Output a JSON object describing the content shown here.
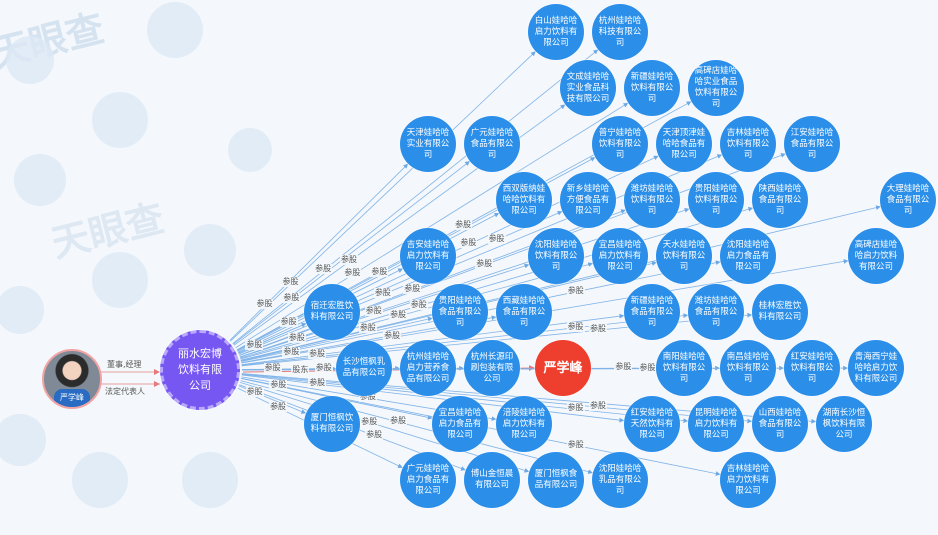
{
  "watermark": "天眼查",
  "person": {
    "name": "严学峰",
    "relations": [
      "董事,经理",
      "法定代表人"
    ]
  },
  "center": {
    "name": "丽水宏博饮料有限公司",
    "color": "#7657f2"
  },
  "highlight": {
    "name": "严学峰",
    "color": "#ee3f2e",
    "edge": "股东"
  },
  "node_color": "#2b8fea",
  "edge_label": "参股",
  "companies": [
    "白山娃哈哈启力饮料有限公司",
    "杭州娃哈哈科技有限公司",
    "新疆娃哈哈饮料有限公司",
    "文成娃哈哈实业食品科技有限公司",
    "普宁娃哈哈饮料有限公司",
    "天津娃哈哈实业有限公司",
    "广元娃哈哈食品有限公司",
    "天津顶津娃哈哈食品有限公司",
    "高碑店娃哈哈实业食品饮料有限公司",
    "吉林娃哈哈饮料有限公司",
    "贵阳娃哈哈饮料有限公司",
    "陕西娃哈哈食品有限公司",
    "潍坊娃哈哈饮料有限公司",
    "新乡娃哈哈方便食品有限公司",
    "西双版纳娃哈哈饮料有限公司",
    "宜昌娃哈哈启力饮料有限公司",
    "江安娃哈哈食品有限公司",
    "大理娃哈哈食品有限公司",
    "沈阳娃哈哈饮料有限公司",
    "西藏娃哈哈食品有限公司",
    "天水娃哈哈饮料有限公司",
    "沈阳娃哈哈启力食品有限公司",
    "吉安娃哈哈启力饮料有限公司",
    "宿迁宏胜饮料有限公司",
    "贵阳娃哈哈食品有限公司",
    "新疆娃哈哈食品有限公司",
    "潍坊娃哈哈食品有限公司",
    "桂林宏胜饮料有限公司",
    "高碑店娃哈哈启力饮料有限公司",
    "南阳娃哈哈饮料有限公司",
    "杭州娃哈哈启力营养食品有限公司",
    "杭州长源印刷包装有限公司",
    "长沙恒枫乳品有限公司",
    "南昌娃哈哈饮料有限公司",
    "红安娃哈哈饮料有限公司",
    "青海西宁娃哈哈启力饮料有限公司",
    "宜昌娃哈哈启力食品有限公司",
    "红安娃哈哈天然饮料有限公司",
    "昆明娃哈哈启力饮料有限公司",
    "山西娃哈哈食品有限公司",
    "湖南长沙恒枫饮料有限公司",
    "厦门恒枫饮料有限公司",
    "广元娃哈哈启力食品有限公司",
    "涪陵娃哈哈启力饮料有限公司",
    "厦门恒枫食品有限公司",
    "沈阳娃哈哈乳品有限公司",
    "吉林娃哈哈启力饮料有限公司",
    "博山金恒晨有限公司"
  ]
}
